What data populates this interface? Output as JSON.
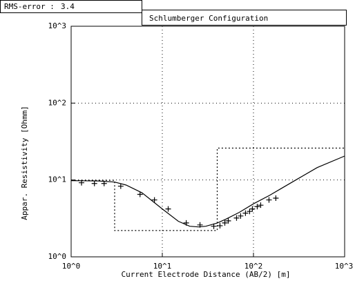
{
  "header": {
    "rms_label": "RMS-error :",
    "rms_error": 3.4
  },
  "chart_data": {
    "type": "line",
    "title": "Schlumberger Configuration",
    "x_label": "Current Electrode Distance (AB/2) [m]",
    "y_label": "Appar. Resistivity [Ohmm]",
    "xscale": "log",
    "yscale": "log",
    "grid": true,
    "xlim": [
      1,
      1000
    ],
    "ylim": [
      1,
      1000
    ],
    "xticks": [
      {
        "value": 1,
        "label": "10^0"
      },
      {
        "value": 10,
        "label": "10^1"
      },
      {
        "value": 100,
        "label": "10^2"
      },
      {
        "value": 1000,
        "label": "10^3"
      }
    ],
    "yticks": [
      {
        "value": 1,
        "label": "10^0"
      },
      {
        "value": 10,
        "label": "10^1"
      },
      {
        "value": 100,
        "label": "10^2"
      },
      {
        "value": 1000,
        "label": "10^3"
      }
    ],
    "series": [
      {
        "style": "solid",
        "color": "#000000",
        "x": [
          1,
          2,
          3,
          4,
          6,
          10,
          15,
          20,
          25,
          30,
          40,
          50,
          70,
          100,
          150,
          200,
          300,
          500,
          1000
        ],
        "values": [
          9.8,
          9.7,
          9.4,
          8.6,
          6.8,
          4.2,
          2.9,
          2.5,
          2.45,
          2.5,
          2.75,
          3.1,
          3.8,
          4.9,
          6.3,
          7.7,
          10.2,
          14.5,
          20.5
        ]
      },
      {
        "style": "markers",
        "color": "#000000",
        "x": [
          1.3,
          1.8,
          2.3,
          3.5,
          5.7,
          8.2,
          11.6,
          18.3,
          25.9,
          36.7,
          42.9,
          48.5,
          52.9,
          65.2,
          72.3,
          81.7,
          90.7,
          97.2,
          110,
          120,
          148,
          176
        ],
        "values": [
          9.2,
          9.0,
          9.0,
          8.3,
          6.5,
          5.5,
          4.2,
          2.76,
          2.6,
          2.5,
          2.54,
          2.76,
          2.94,
          3.2,
          3.4,
          3.7,
          3.9,
          4.2,
          4.5,
          4.7,
          5.5,
          5.8
        ]
      },
      {
        "style": "dotted",
        "color": "#000000",
        "x": [
          1,
          3,
          3,
          40,
          40,
          1000
        ],
        "values": [
          9.9,
          9.9,
          2.2,
          2.2,
          26,
          26
        ]
      }
    ]
  }
}
